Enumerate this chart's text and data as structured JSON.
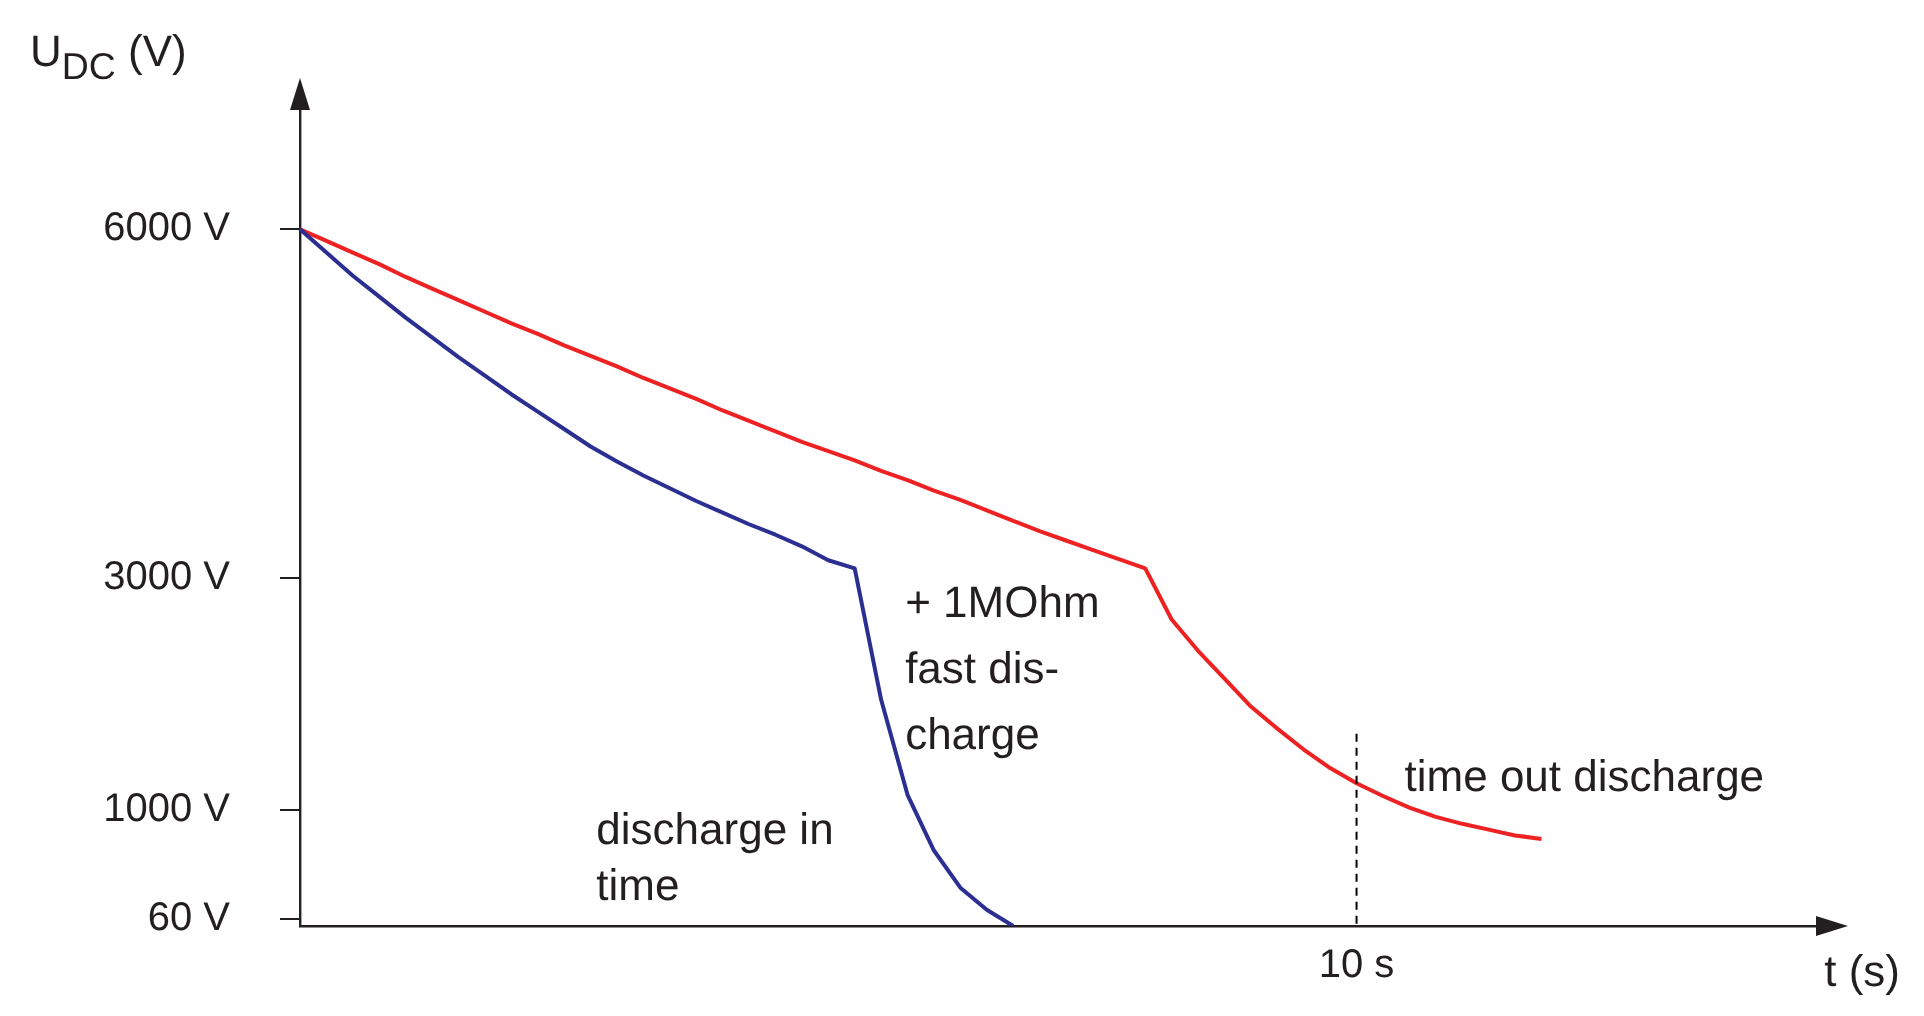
{
  "chart_data": {
    "type": "line",
    "xlabel": "t (s)",
    "ylabel": "U$_{DC}$ (V)",
    "categories": [
      null,
      null,
      null,
      null,
      null,
      null,
      null,
      null,
      null,
      null,
      null,
      null,
      null,
      null,
      null,
      null,
      null,
      null,
      null,
      null,
      null,
      null,
      null,
      null,
      null,
      null,
      null,
      null,
      null,
      null,
      null,
      null,
      null,
      null,
      null,
      null,
      null,
      null,
      null,
      null,
      "10 s",
      null,
      null,
      null,
      null,
      null,
      null,
      null,
      null,
      null,
      null,
      null,
      null,
      null,
      null,
      null,
      null,
      null,
      null
    ],
    "ylim": [
      0,
      7200
    ],
    "yticks": [
      {
        "value": 60,
        "label": "60 V"
      },
      {
        "value": 1000,
        "label": "1000 V"
      },
      {
        "value": 3000,
        "label": "3000 V"
      },
      {
        "value": 6000,
        "label": "6000 V"
      }
    ],
    "series": [
      {
        "name": "discharge in time",
        "color": "#2b2f92",
        "values": [
          6000,
          5800,
          5600,
          5420,
          5240,
          5070,
          4900,
          4740,
          4580,
          4430,
          4280,
          4130,
          4000,
          3880,
          3770,
          3660,
          3560,
          3460,
          3370,
          3270,
          3150,
          3080,
          1950,
          1130,
          650,
          330,
          140,
          0,
          null,
          null,
          null,
          null,
          null,
          null,
          null,
          null,
          null,
          null,
          null,
          null,
          null,
          null,
          null,
          null,
          null,
          null,
          null,
          null,
          null,
          null,
          null,
          null,
          null,
          null,
          null,
          null,
          null,
          null,
          null
        ]
      },
      {
        "name": "time out discharge",
        "color": "#ee2222",
        "values": [
          6000,
          5900,
          5800,
          5700,
          5590,
          5490,
          5390,
          5290,
          5190,
          5100,
          5000,
          4910,
          4820,
          4720,
          4630,
          4540,
          4440,
          4350,
          4260,
          4170,
          4090,
          4010,
          3920,
          3840,
          3750,
          3670,
          3580,
          3490,
          3400,
          3320,
          3240,
          3160,
          3080,
          2640,
          2370,
          2130,
          1890,
          1700,
          1520,
          1360,
          1230,
          1120,
          1020,
          940,
          880,
          830,
          780,
          750,
          null,
          null,
          null,
          null,
          null,
          null,
          null,
          null,
          null,
          null,
          null
        ]
      }
    ],
    "ref_lines": [
      {
        "axis": "x",
        "value": "10 s",
        "line_style": "dashed",
        "color": "#000000"
      }
    ],
    "annotations": [
      "+ 1MOhm\nfast dis-\ncharge"
    ],
    "grid": false,
    "legend": false,
    "marker": "none",
    "line_style": "solid"
  }
}
